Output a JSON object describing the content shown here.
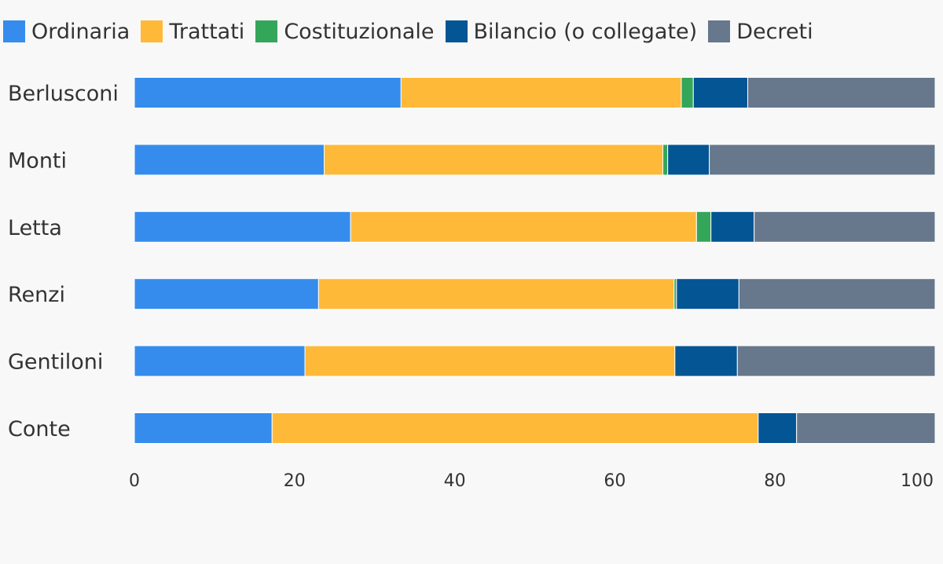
{
  "chart_data": {
    "type": "bar",
    "orientation": "horizontal",
    "stacked": true,
    "categories": [
      "Berlusconi",
      "Monti",
      "Letta",
      "Renzi",
      "Gentiloni",
      "Conte"
    ],
    "series": [
      {
        "name": "Ordinaria",
        "color": "#358ced",
        "values": [
          33.3,
          23.7,
          27.0,
          23.0,
          21.3,
          17.2
        ]
      },
      {
        "name": "Trattati",
        "color": "#ffb938",
        "values": [
          35.0,
          42.3,
          43.2,
          44.4,
          46.2,
          60.7
        ]
      },
      {
        "name": "Costituzionale",
        "color": "#34a65a",
        "values": [
          1.5,
          0.6,
          1.8,
          0.3,
          0.0,
          0.0
        ]
      },
      {
        "name": "Bilancio (o collegate)",
        "color": "#045594",
        "values": [
          6.8,
          5.2,
          5.4,
          7.8,
          7.8,
          4.8
        ]
      },
      {
        "name": "Decreti",
        "color": "#67778c",
        "values": [
          23.4,
          28.2,
          22.6,
          24.5,
          24.7,
          17.3
        ]
      }
    ],
    "xlim": [
      0,
      100
    ],
    "xticks": [
      "0",
      "20",
      "40",
      "60",
      "80",
      "100"
    ],
    "grid": false,
    "legend_position": "top-left"
  }
}
